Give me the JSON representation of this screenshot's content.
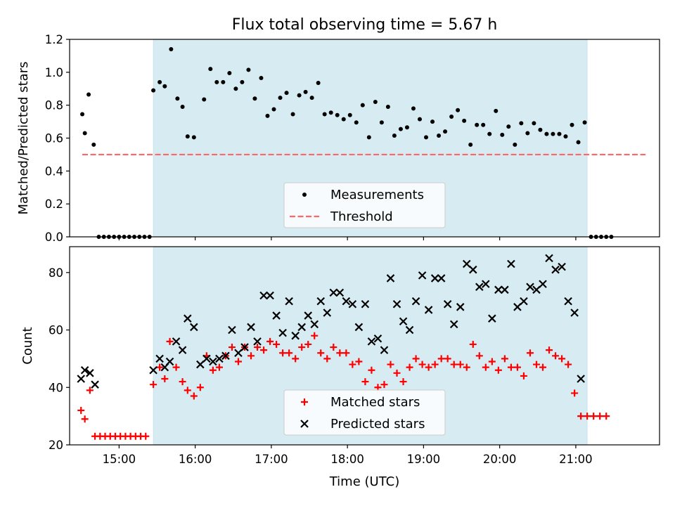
{
  "figure": {
    "title": "Flux total observing time = 5.67 h",
    "xlabel": "Time (UTC)"
  },
  "chart_data": [
    {
      "type": "scatter",
      "panel": "top",
      "title": "Flux total observing time = 5.67 h",
      "ylabel": "Matched/Predicted stars",
      "xlim": [
        "14:21",
        "22:06"
      ],
      "ylim": [
        0,
        1.2
      ],
      "yticks": [
        "0.0",
        "0.2",
        "0.4",
        "0.6",
        "0.8",
        "1.0",
        "1.2"
      ],
      "xticks": [
        "15:00",
        "16:00",
        "17:00",
        "18:00",
        "19:00",
        "20:00",
        "21:00"
      ],
      "tick_labels_visible": false,
      "shaded_region": {
        "start": "15:27",
        "end": "21:09",
        "color": "#add8e6"
      },
      "threshold": {
        "name": "Threshold",
        "value": 0.5,
        "start": "14:31",
        "end": "21:55",
        "color": "#ff6666",
        "style": "dashed"
      },
      "legend": {
        "location": "bottom-center",
        "entries": [
          "Measurements",
          "Threshold"
        ]
      },
      "series": [
        {
          "name": "Measurements",
          "color": "#000000",
          "marker": "dot",
          "points": [
            [
              "14:31",
              0.745
            ],
            [
              "14:33",
              0.63
            ],
            [
              "14:36",
              0.865
            ],
            [
              "14:40",
              0.56
            ],
            [
              "14:44",
              0.0
            ],
            [
              "14:48",
              0.0
            ],
            [
              "14:52",
              0.0
            ],
            [
              "14:56",
              0.0
            ],
            [
              "15:00",
              0.0
            ],
            [
              "15:04",
              0.0
            ],
            [
              "15:08",
              0.0
            ],
            [
              "15:12",
              0.0
            ],
            [
              "15:16",
              0.0
            ],
            [
              "15:20",
              0.0
            ],
            [
              "15:24",
              0.0
            ],
            [
              "15:27",
              0.89
            ],
            [
              "15:32",
              0.94
            ],
            [
              "15:36",
              0.915
            ],
            [
              "15:41",
              1.14
            ],
            [
              "15:46",
              0.84
            ],
            [
              "15:50",
              0.79
            ],
            [
              "15:54",
              0.61
            ],
            [
              "15:59",
              0.605
            ],
            [
              "16:07",
              0.835
            ],
            [
              "16:12",
              1.02
            ],
            [
              "16:17",
              0.94
            ],
            [
              "16:22",
              0.94
            ],
            [
              "16:27",
              0.995
            ],
            [
              "16:32",
              0.9
            ],
            [
              "16:37",
              0.94
            ],
            [
              "16:42",
              1.015
            ],
            [
              "16:47",
              0.84
            ],
            [
              "16:52",
              0.965
            ],
            [
              "16:57",
              0.735
            ],
            [
              "17:02",
              0.775
            ],
            [
              "17:07",
              0.845
            ],
            [
              "17:12",
              0.875
            ],
            [
              "17:17",
              0.745
            ],
            [
              "17:22",
              0.86
            ],
            [
              "17:27",
              0.88
            ],
            [
              "17:32",
              0.845
            ],
            [
              "17:37",
              0.935
            ],
            [
              "17:42",
              0.745
            ],
            [
              "17:47",
              0.755
            ],
            [
              "17:52",
              0.74
            ],
            [
              "17:57",
              0.715
            ],
            [
              "18:02",
              0.74
            ],
            [
              "18:07",
              0.695
            ],
            [
              "18:12",
              0.8
            ],
            [
              "18:17",
              0.605
            ],
            [
              "18:22",
              0.82
            ],
            [
              "18:27",
              0.695
            ],
            [
              "18:32",
              0.79
            ],
            [
              "18:37",
              0.615
            ],
            [
              "18:42",
              0.655
            ],
            [
              "18:47",
              0.665
            ],
            [
              "18:52",
              0.78
            ],
            [
              "18:57",
              0.715
            ],
            [
              "19:02",
              0.605
            ],
            [
              "19:07",
              0.7
            ],
            [
              "19:12",
              0.615
            ],
            [
              "19:17",
              0.64
            ],
            [
              "19:22",
              0.73
            ],
            [
              "19:27",
              0.77
            ],
            [
              "19:32",
              0.705
            ],
            [
              "19:37",
              0.56
            ],
            [
              "19:42",
              0.68
            ],
            [
              "19:47",
              0.68
            ],
            [
              "19:52",
              0.625
            ],
            [
              "19:57",
              0.765
            ],
            [
              "20:02",
              0.62
            ],
            [
              "20:07",
              0.67
            ],
            [
              "20:12",
              0.56
            ],
            [
              "20:17",
              0.69
            ],
            [
              "20:22",
              0.63
            ],
            [
              "20:27",
              0.69
            ],
            [
              "20:32",
              0.65
            ],
            [
              "20:37",
              0.625
            ],
            [
              "20:42",
              0.625
            ],
            [
              "20:47",
              0.625
            ],
            [
              "20:52",
              0.61
            ],
            [
              "20:57",
              0.68
            ],
            [
              "21:02",
              0.575
            ],
            [
              "21:07",
              0.695
            ],
            [
              "21:12",
              0.0
            ],
            [
              "21:16",
              0.0
            ],
            [
              "21:20",
              0.0
            ],
            [
              "21:24",
              0.0
            ],
            [
              "21:28",
              0.0
            ]
          ]
        }
      ]
    },
    {
      "type": "scatter",
      "panel": "bottom",
      "xlabel": "Time (UTC)",
      "ylabel": "Count",
      "xlim": [
        "14:21",
        "22:06"
      ],
      "ylim": [
        20,
        89
      ],
      "yticks": [
        "20",
        "40",
        "60",
        "80"
      ],
      "xticks": [
        "15:00",
        "16:00",
        "17:00",
        "18:00",
        "19:00",
        "20:00",
        "21:00"
      ],
      "shaded_region": {
        "start": "15:27",
        "end": "21:09",
        "color": "#add8e6"
      },
      "legend": {
        "location": "bottom-center",
        "entries": [
          "Matched stars",
          "Predicted stars"
        ]
      },
      "series": [
        {
          "name": "Matched stars",
          "color": "#ff0000",
          "marker": "plus",
          "points": [
            [
              "14:30",
              32
            ],
            [
              "14:33",
              29
            ],
            [
              "14:37",
              39
            ],
            [
              "14:41",
              23
            ],
            [
              "14:45",
              23
            ],
            [
              "14:49",
              23
            ],
            [
              "14:53",
              23
            ],
            [
              "14:57",
              23
            ],
            [
              "15:01",
              23
            ],
            [
              "15:05",
              23
            ],
            [
              "15:09",
              23
            ],
            [
              "15:13",
              23
            ],
            [
              "15:17",
              23
            ],
            [
              "15:21",
              23
            ],
            [
              "15:27",
              41
            ],
            [
              "15:32",
              47
            ],
            [
              "15:36",
              43
            ],
            [
              "15:40",
              56
            ],
            [
              "15:45",
              47
            ],
            [
              "15:50",
              42
            ],
            [
              "15:54",
              39
            ],
            [
              "15:59",
              37
            ],
            [
              "16:04",
              40
            ],
            [
              "16:09",
              51
            ],
            [
              "16:14",
              46
            ],
            [
              "16:19",
              47
            ],
            [
              "16:24",
              51
            ],
            [
              "16:29",
              54
            ],
            [
              "16:34",
              49
            ],
            [
              "16:39",
              54
            ],
            [
              "16:44",
              51
            ],
            [
              "16:49",
              54
            ],
            [
              "16:54",
              53
            ],
            [
              "16:59",
              56
            ],
            [
              "17:04",
              55
            ],
            [
              "17:09",
              52
            ],
            [
              "17:14",
              52
            ],
            [
              "17:19",
              50
            ],
            [
              "17:24",
              54
            ],
            [
              "17:29",
              55
            ],
            [
              "17:34",
              58
            ],
            [
              "17:39",
              52
            ],
            [
              "17:44",
              50
            ],
            [
              "17:49",
              54
            ],
            [
              "17:54",
              52
            ],
            [
              "17:59",
              52
            ],
            [
              "18:04",
              48
            ],
            [
              "18:09",
              49
            ],
            [
              "18:14",
              42
            ],
            [
              "18:19",
              46
            ],
            [
              "18:24",
              40
            ],
            [
              "18:29",
              41
            ],
            [
              "18:34",
              48
            ],
            [
              "18:39",
              45
            ],
            [
              "18:44",
              42
            ],
            [
              "18:49",
              47
            ],
            [
              "18:54",
              50
            ],
            [
              "18:59",
              48
            ],
            [
              "19:04",
              47
            ],
            [
              "19:09",
              48
            ],
            [
              "19:14",
              50
            ],
            [
              "19:19",
              50
            ],
            [
              "19:24",
              48
            ],
            [
              "19:29",
              48
            ],
            [
              "19:34",
              47
            ],
            [
              "19:39",
              55
            ],
            [
              "19:44",
              51
            ],
            [
              "19:49",
              47
            ],
            [
              "19:54",
              49
            ],
            [
              "19:59",
              46
            ],
            [
              "20:04",
              50
            ],
            [
              "20:09",
              47
            ],
            [
              "20:14",
              47
            ],
            [
              "20:19",
              44
            ],
            [
              "20:24",
              52
            ],
            [
              "20:29",
              48
            ],
            [
              "20:34",
              47
            ],
            [
              "20:39",
              53
            ],
            [
              "20:44",
              51
            ],
            [
              "20:49",
              50
            ],
            [
              "20:54",
              48
            ],
            [
              "20:59",
              38
            ],
            [
              "21:04",
              30
            ],
            [
              "21:09",
              30
            ],
            [
              "21:14",
              30
            ],
            [
              "21:19",
              30
            ],
            [
              "21:24",
              30
            ]
          ]
        },
        {
          "name": "Predicted stars",
          "color": "#000000",
          "marker": "x",
          "points": [
            [
              "14:30",
              43
            ],
            [
              "14:33",
              46
            ],
            [
              "14:37",
              45
            ],
            [
              "14:41",
              41
            ],
            [
              "15:27",
              46
            ],
            [
              "15:32",
              50
            ],
            [
              "15:36",
              47
            ],
            [
              "15:40",
              49
            ],
            [
              "15:45",
              56
            ],
            [
              "15:50",
              53
            ],
            [
              "15:54",
              64
            ],
            [
              "15:59",
              61
            ],
            [
              "16:04",
              48
            ],
            [
              "16:09",
              50
            ],
            [
              "16:14",
              49
            ],
            [
              "16:19",
              50
            ],
            [
              "16:24",
              51
            ],
            [
              "16:29",
              60
            ],
            [
              "16:34",
              52
            ],
            [
              "16:39",
              54
            ],
            [
              "16:44",
              61
            ],
            [
              "16:49",
              56
            ],
            [
              "16:54",
              72
            ],
            [
              "16:59",
              72
            ],
            [
              "17:04",
              65
            ],
            [
              "17:09",
              59
            ],
            [
              "17:14",
              70
            ],
            [
              "17:19",
              58
            ],
            [
              "17:24",
              61
            ],
            [
              "17:29",
              65
            ],
            [
              "17:34",
              62
            ],
            [
              "17:39",
              70
            ],
            [
              "17:44",
              66
            ],
            [
              "17:49",
              73
            ],
            [
              "17:54",
              73
            ],
            [
              "17:59",
              70
            ],
            [
              "18:04",
              69
            ],
            [
              "18:09",
              61
            ],
            [
              "18:14",
              69
            ],
            [
              "18:19",
              56
            ],
            [
              "18:24",
              57
            ],
            [
              "18:29",
              53
            ],
            [
              "18:34",
              78
            ],
            [
              "18:39",
              69
            ],
            [
              "18:44",
              63
            ],
            [
              "18:49",
              60
            ],
            [
              "18:54",
              70
            ],
            [
              "18:59",
              79
            ],
            [
              "19:04",
              67
            ],
            [
              "19:09",
              78
            ],
            [
              "19:14",
              78
            ],
            [
              "19:19",
              69
            ],
            [
              "19:24",
              62
            ],
            [
              "19:29",
              68
            ],
            [
              "19:34",
              83
            ],
            [
              "19:39",
              81
            ],
            [
              "19:44",
              75
            ],
            [
              "19:49",
              76
            ],
            [
              "19:54",
              64
            ],
            [
              "19:59",
              74
            ],
            [
              "20:04",
              74
            ],
            [
              "20:09",
              83
            ],
            [
              "20:14",
              68
            ],
            [
              "20:19",
              70
            ],
            [
              "20:24",
              75
            ],
            [
              "20:29",
              74
            ],
            [
              "20:34",
              76
            ],
            [
              "20:39",
              85
            ],
            [
              "20:44",
              81
            ],
            [
              "20:49",
              82
            ],
            [
              "20:54",
              70
            ],
            [
              "20:59",
              66
            ],
            [
              "21:04",
              43
            ]
          ]
        }
      ]
    }
  ]
}
